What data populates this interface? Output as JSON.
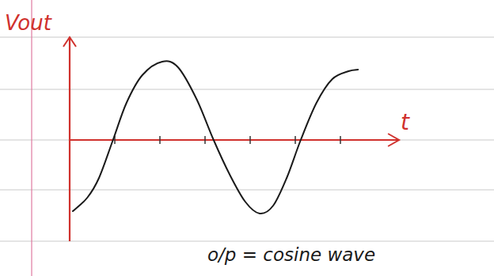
{
  "chart_data": {
    "type": "line",
    "ylabel": "Vout",
    "xlabel": "t",
    "annotation": "o/p = cosine wave",
    "x": [
      0.07,
      0.39,
      0.65,
      0.96,
      1.26,
      1.61,
      2.05,
      2.4,
      2.81,
      3.19,
      3.54,
      3.89,
      4.21,
      4.51,
      4.81,
      5.12,
      5.47,
      5.82,
      6.18,
      6.39
    ],
    "values": [
      -0.9,
      -0.73,
      -0.48,
      0,
      0.47,
      0.82,
      0.99,
      0.92,
      0.52,
      0,
      -0.43,
      -0.78,
      -0.93,
      -0.83,
      -0.48,
      0,
      0.47,
      0.77,
      0.87,
      0.89
    ],
    "color": "#1a1a1a",
    "xlim": [
      0,
      7.3
    ],
    "ylim": [
      -1.28,
      1.3
    ],
    "xticks": [
      1,
      2,
      3,
      4,
      5,
      6
    ],
    "tick_labels": false
  }
}
